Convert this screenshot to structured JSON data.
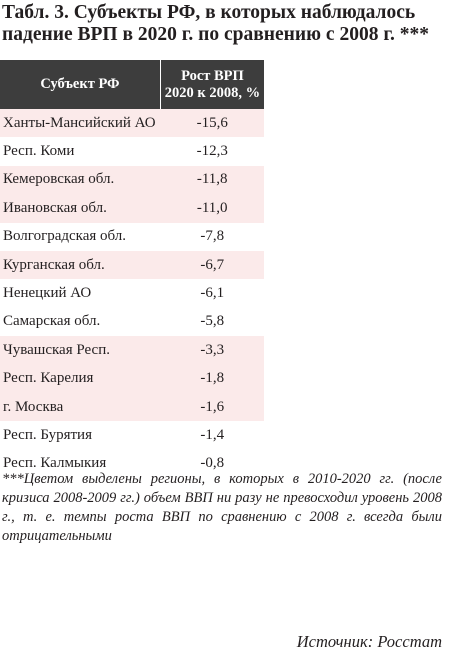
{
  "title": {
    "line1": "Табл. 3. Субъекты РФ, в которых наблюдалось",
    "line2": "падение ВРП в 2020 г. по сравнению с 2008 г. ***"
  },
  "table": {
    "headers": {
      "subject": "Субъект РФ",
      "growth_line1": "Рост ВРП",
      "growth_line2": "2020 к 2008, %"
    },
    "highlight_color": "#fbeaea",
    "header_color": "#3d3d3d",
    "rows": [
      {
        "subject": "Ханты-Мансийский АО",
        "value": "-15,6",
        "highlighted": true
      },
      {
        "subject": "Респ. Коми",
        "value": "-12,3",
        "highlighted": false
      },
      {
        "subject": "Кемеровская обл.",
        "value": "-11,8",
        "highlighted": true
      },
      {
        "subject": "Ивановская обл.",
        "value": "-11,0",
        "highlighted": true
      },
      {
        "subject": "Волгоградская обл.",
        "value": "-7,8",
        "highlighted": false
      },
      {
        "subject": "Курганская обл.",
        "value": "-6,7",
        "highlighted": true
      },
      {
        "subject": "Ненецкий АО",
        "value": "-6,1",
        "highlighted": false
      },
      {
        "subject": "Самарская обл.",
        "value": "-5,8",
        "highlighted": false
      },
      {
        "subject": "Чувашская Респ.",
        "value": "-3,3",
        "highlighted": true
      },
      {
        "subject": "Респ. Карелия",
        "value": "-1,8",
        "highlighted": true
      },
      {
        "subject": "г. Москва",
        "value": "-1,6",
        "highlighted": true
      },
      {
        "subject": "Респ. Бурятия",
        "value": "-1,4",
        "highlighted": false
      },
      {
        "subject": "Респ. Калмыкия",
        "value": "-0,8",
        "highlighted": false
      }
    ]
  },
  "note": "***Цветом выделены регионы, в которых в 2010-2020 гг. (после кризиса 2008-2009 гг.) объем ВВП ни разу не превосходил уровень 2008 г., т. е. темпы роста ВВП по сравнению с 2008 г. всегда были отрицательными",
  "source": "Источник: Росстат"
}
